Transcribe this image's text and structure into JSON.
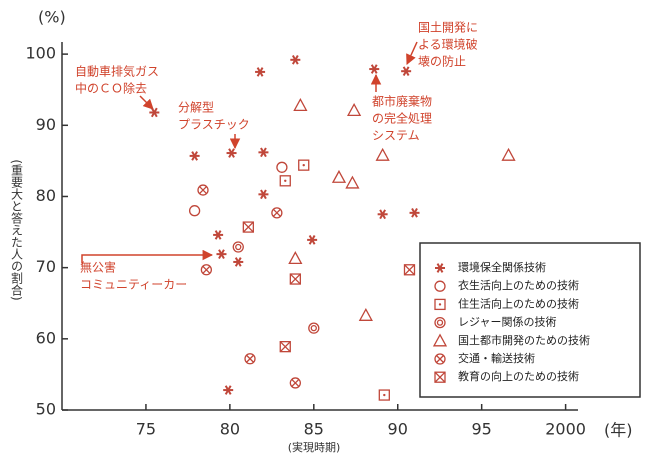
{
  "chart_data": {
    "type": "scatter",
    "y_unit": "(%)",
    "ylabel": "(重要大と答えた人の割合)",
    "x_unit": "(年)",
    "xlabel": "(実現時期)",
    "xlim": [
      1970,
      2000.5
    ],
    "ylim": [
      50,
      101
    ],
    "xticks": [
      {
        "value": 1975,
        "label": "75"
      },
      {
        "value": 1980,
        "label": "80"
      },
      {
        "value": 1985,
        "label": "85"
      },
      {
        "value": 1990,
        "label": "90"
      },
      {
        "value": 1995,
        "label": "95"
      },
      2000
    ],
    "yticks": [
      50,
      60,
      70,
      80,
      90,
      100
    ],
    "color": "#c0473a",
    "series": [
      {
        "name": "環境保全関係技術",
        "marker": "asterisk",
        "x": [
          1975.5,
          1977.9,
          1980.1,
          1981.8,
          1983.9,
          1982.0,
          1982.0,
          1979.3,
          1979.5,
          1980.5,
          1984.9,
          1979.9,
          1988.6,
          1990.5,
          1989.1,
          1991.0
        ],
        "values": [
          91.8,
          85.7,
          86.1,
          97.5,
          99.2,
          86.2,
          80.3,
          74.6,
          71.9,
          70.8,
          73.9,
          52.8,
          97.9,
          97.6,
          77.5,
          77.7
        ]
      },
      {
        "name": "衣生活向上のための技術",
        "marker": "circle",
        "x": [
          1977.9,
          1983.1
        ],
        "values": [
          78.0,
          84.1
        ]
      },
      {
        "name": "住生活向上のための技術",
        "marker": "square-dot",
        "x": [
          1984.4,
          1983.3,
          1989.2
        ],
        "values": [
          84.4,
          82.2,
          52.1
        ]
      },
      {
        "name": "レジャー関係の技術",
        "marker": "double-circle",
        "x": [
          1980.5,
          1985.0
        ],
        "values": [
          72.9,
          61.5
        ]
      },
      {
        "name": "国土都市開発のための技術",
        "marker": "triangle",
        "x": [
          1984.2,
          1987.4,
          1989.1,
          1986.5,
          1987.3,
          1983.9,
          1988.1,
          1996.6
        ],
        "values": [
          92.8,
          92.1,
          85.8,
          82.7,
          81.9,
          71.3,
          63.3,
          85.8
        ]
      },
      {
        "name": "交通・輸送技術",
        "marker": "circle-x",
        "x": [
          1978.4,
          1982.8,
          1978.6,
          1981.2,
          1983.9
        ],
        "values": [
          80.9,
          77.7,
          69.7,
          57.2,
          53.8
        ]
      },
      {
        "name": "教育の向上のための技術",
        "marker": "square-x",
        "x": [
          1981.1,
          1983.9,
          1983.3,
          1990.7
        ],
        "values": [
          75.7,
          68.4,
          58.9,
          69.7
        ]
      }
    ],
    "annotations": [
      [
        "自動車排気ガス",
        "中のＣＯ除去"
      ],
      [
        "分解型",
        "プラスチック"
      ],
      [
        "都市廃棄物",
        "の完全処理",
        "システム"
      ],
      [
        "国土開発に",
        "よる環境破",
        "壊の防止"
      ],
      [
        "無公害",
        "コミュニティーカー"
      ]
    ]
  }
}
